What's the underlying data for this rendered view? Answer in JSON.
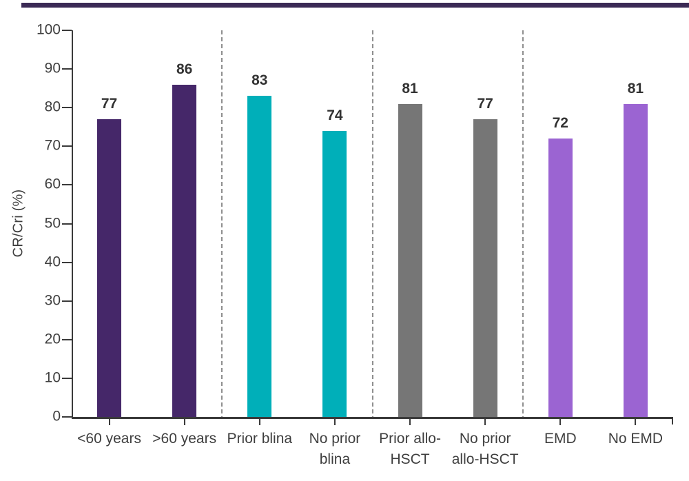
{
  "page": {
    "background": "#ffffff",
    "accent_bar_color": "#3b2a55"
  },
  "chart_data": {
    "type": "bar",
    "title": "",
    "xlabel": "",
    "ylabel": "CR/Cri (%)",
    "ylim": [
      0,
      100
    ],
    "yticks": [
      0,
      10,
      20,
      30,
      40,
      50,
      60,
      70,
      80,
      90,
      100
    ],
    "grid": false,
    "legend": false,
    "categories": [
      "<60 years",
      ">60 years",
      "Prior blina",
      "No prior blina",
      "Prior allo-HSCT",
      "No prior allo-HSCT",
      "EMD",
      "No EMD"
    ],
    "category_display_lines": [
      [
        "<60 years"
      ],
      [
        ">60 years"
      ],
      [
        "Prior blina"
      ],
      [
        "No prior",
        "blina"
      ],
      [
        "Prior allo-",
        "HSCT"
      ],
      [
        "No prior",
        "allo-HSCT"
      ],
      [
        "EMD"
      ],
      [
        "No EMD"
      ]
    ],
    "values": [
      77,
      86,
      83,
      74,
      81,
      77,
      72,
      81
    ],
    "bar_colors": [
      "#452769",
      "#452769",
      "#00afb9",
      "#00afb9",
      "#767676",
      "#767676",
      "#9b64d2",
      "#9b64d2"
    ],
    "bar_value_labels": [
      "77",
      "86",
      "83",
      "74",
      "81",
      "77",
      "72",
      "81"
    ],
    "group_separator_slot_indices": [
      2,
      4,
      6
    ],
    "separator_style": "dashed",
    "separator_color": "#8f8f8f",
    "axis_color": "#3a3a3a",
    "tick_label_color": "#3f3f3f",
    "bar_label_color": "#333333"
  }
}
